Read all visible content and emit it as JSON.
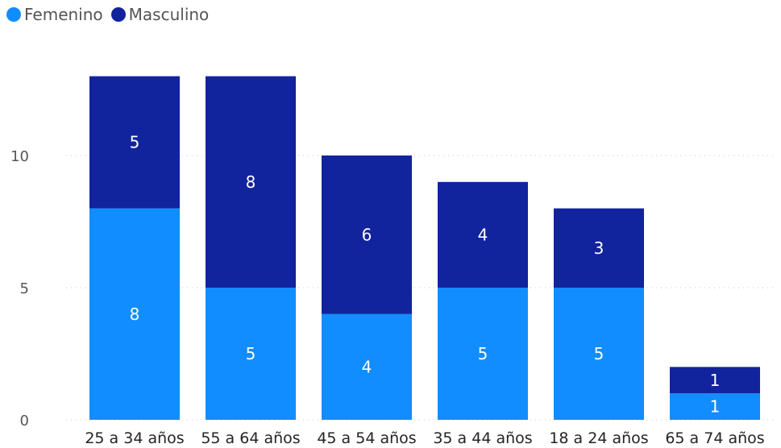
{
  "legend": [
    {
      "name": "Femenino",
      "color": "#118DFF"
    },
    {
      "name": "Masculino",
      "color": "#12239E"
    }
  ],
  "chart_data": {
    "type": "bar",
    "stacked": true,
    "categories": [
      "25 a 34 años",
      "55 a 64 años",
      "45 a 54 años",
      "35 a 44 años",
      "18 a 24 años",
      "65 a 74 años"
    ],
    "series": [
      {
        "name": "Femenino",
        "color": "#118DFF",
        "values": [
          8,
          5,
          4,
          5,
          5,
          1
        ]
      },
      {
        "name": "Masculino",
        "color": "#12239E",
        "values": [
          5,
          8,
          6,
          4,
          3,
          1
        ]
      }
    ],
    "yticks": [
      0,
      5,
      10
    ],
    "ylim": [
      0,
      13
    ],
    "grid": true,
    "legend_position": "top-left"
  }
}
